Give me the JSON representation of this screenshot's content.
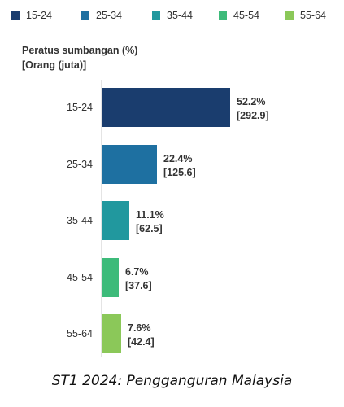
{
  "chart_data": {
    "type": "bar",
    "orientation": "horizontal",
    "ylabel_line1": "Peratus sumbangan (%)",
    "ylabel_line2": "[Orang (juta)]",
    "legend_position": "top",
    "grid": false,
    "xlim": [
      0,
      52.2
    ],
    "categories": [
      "15-24",
      "25-34",
      "35-44",
      "45-54",
      "55-64"
    ],
    "values": [
      52.2,
      22.4,
      11.1,
      6.7,
      7.6
    ],
    "value_labels": [
      "52.2%",
      "22.4%",
      "11.1%",
      "6.7%",
      "7.6%"
    ],
    "secondary_labels": [
      "[292.9]",
      "[125.6]",
      "[62.5]",
      "[37.6]",
      "[42.4]"
    ],
    "colors": [
      "#1a3d6e",
      "#1e70a1",
      "#21989e",
      "#3dbb7a",
      "#8bc859"
    ],
    "legend": [
      "15-24",
      "25-34",
      "35-44",
      "45-54",
      "55-64"
    ]
  },
  "caption": "ST1 2024: Pengganguran Malaysia"
}
